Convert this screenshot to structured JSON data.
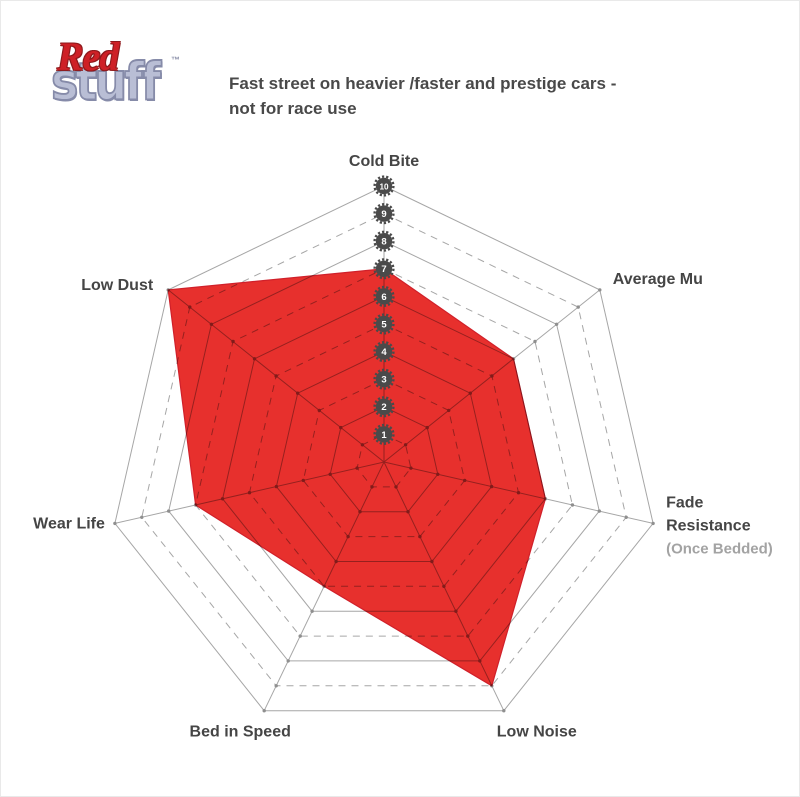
{
  "logo": {
    "word_red": "Red",
    "word_stuff": "stuff",
    "trademark": "™"
  },
  "header": {
    "subtitle_line1": "Fast street on heavier /faster and prestige cars -",
    "subtitle_line2": "not for race use"
  },
  "chart_data": {
    "type": "radar",
    "categories": [
      "Cold Bite",
      "Average Mu",
      "Fade Resistance (Once Bedded)",
      "Low Noise",
      "Bed in Speed",
      "Wear Life",
      "Low Dust"
    ],
    "values": [
      7,
      6,
      6,
      9,
      5,
      7,
      10
    ],
    "scale_min": 1,
    "scale_max": 10,
    "ticks": [
      "10",
      "9",
      "8",
      "7",
      "6",
      "5",
      "4",
      "3",
      "2",
      "1"
    ],
    "rings": 10,
    "grid": "heptagonal concentric rings, even rings solid, odd rings dashed, radial spokes with intersection dots",
    "legend_position": "none",
    "colors": {
      "fill": "#e7302d",
      "fill_edge": "#d0202a",
      "grid": "#a6a6a6",
      "dot": "#8f8f8f",
      "badge": "#4a4a4a",
      "badge_text": "#ffffff",
      "label": "#454545",
      "label_muted": "#a3a3a3"
    }
  },
  "axes": [
    {
      "label_lines": [
        "Cold Bite"
      ],
      "value": 7
    },
    {
      "label_lines": [
        "Average Mu"
      ],
      "value": 6
    },
    {
      "label_lines": [
        "Fade",
        "Resistance",
        "(Once Bedded)"
      ],
      "value": 6,
      "muted_from": 2
    },
    {
      "label_lines": [
        "Low Noise"
      ],
      "value": 9
    },
    {
      "label_lines": [
        "Bed in Speed"
      ],
      "value": 5
    },
    {
      "label_lines": [
        "Wear Life"
      ],
      "value": 7
    },
    {
      "label_lines": [
        "Low Dust"
      ],
      "value": 10
    }
  ]
}
